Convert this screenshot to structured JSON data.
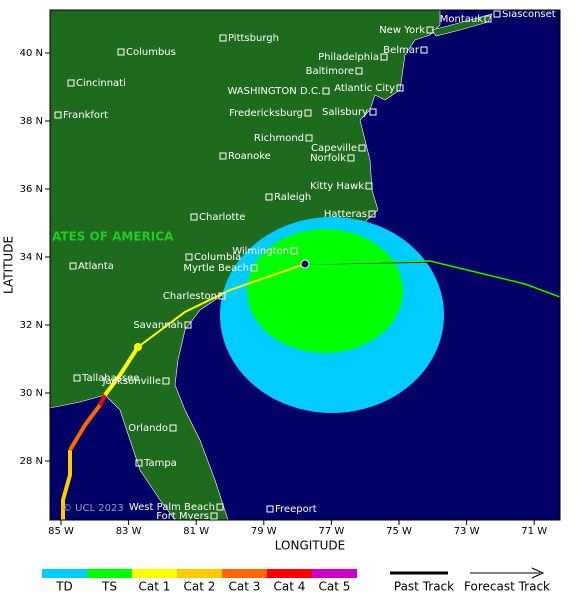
{
  "map": {
    "axes": {
      "x_label": "LONGITUDE",
      "y_label": "LATITUDE",
      "x_ticks": [
        "85 W",
        "83 W",
        "81 W",
        "79 W",
        "77 W",
        "75 W",
        "73 W",
        "71 W"
      ],
      "y_ticks": [
        "40 N",
        "38 N",
        "36 N",
        "34 N",
        "32 N",
        "30 N",
        "28 N"
      ]
    },
    "region_label": "ATES OF AMERICA",
    "copyright": "© UCL 2023",
    "cities": [
      "Columbus",
      "Pittsburgh",
      "Cincinnati",
      "Frankfort",
      "Roanoke",
      "Charlotte",
      "Atlanta",
      "Columbia",
      "Myrtle Beach",
      "Wilmington",
      "Charleston",
      "Savannah",
      "Tallahassee",
      "Jacksonville",
      "Orlando",
      "Tampa",
      "West Palm Beach",
      "Fort Myers",
      "Freeport",
      "Raleigh",
      "Kitty Hawk",
      "Hatteras",
      "Norfolk",
      "Capeville",
      "Richmond",
      "Fredericksburg",
      "Salisbury",
      "WASHINGTON D.C.",
      "Baltimore",
      "Atlantic City",
      "Philadelphia",
      "Belmar",
      "New York",
      "Montauk",
      "Siasconset"
    ],
    "legend": {
      "categories": [
        {
          "label": "TD",
          "color": "#00ccff"
        },
        {
          "label": "TS",
          "color": "#00ff00"
        },
        {
          "label": "Cat 1",
          "color": "#ffff00"
        },
        {
          "label": "Cat 2",
          "color": "#ffcc00"
        },
        {
          "label": "Cat 3",
          "color": "#ff6600"
        },
        {
          "label": "Cat 4",
          "color": "#ff0000"
        },
        {
          "label": "Cat 5",
          "color": "#cc00cc"
        }
      ],
      "tracks": [
        "Past Track",
        "Forecast Track"
      ]
    }
  }
}
